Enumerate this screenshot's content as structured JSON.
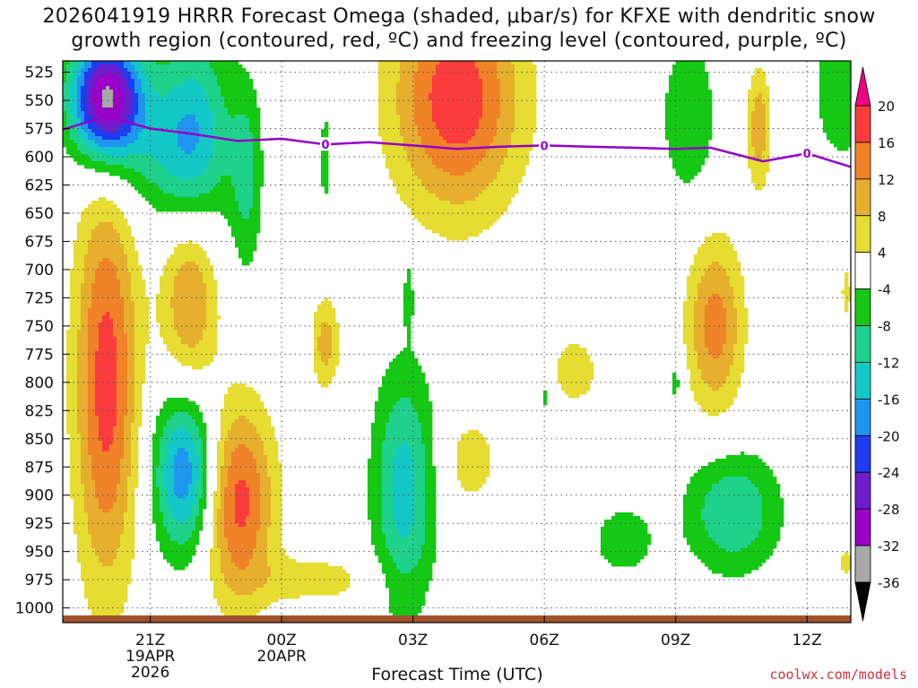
{
  "chart_data": {
    "type": "heatmap",
    "title_line1": "2026041919 HRRR Forecast Omega (shaded, μbar/s) for KFXE with dendritic snow",
    "title_line2": "growth region (contoured, red, ºC) and freezing level (contoured, purple, ºC)",
    "xlabel": "Forecast Time (UTC)",
    "ylabel": "",
    "watermark": "coolwx.com/models",
    "y_ticks": [
      525,
      550,
      575,
      600,
      625,
      650,
      675,
      700,
      725,
      750,
      775,
      800,
      825,
      850,
      875,
      900,
      925,
      950,
      975,
      1000
    ],
    "x_ticks": [
      {
        "hour": 21,
        "label": "21Z",
        "sub": [
          "19APR",
          "2026"
        ]
      },
      {
        "hour": 24,
        "label": "00Z",
        "sub": [
          "20APR"
        ]
      },
      {
        "hour": 27,
        "label": "03Z",
        "sub": []
      },
      {
        "hour": 30,
        "label": "06Z",
        "sub": []
      },
      {
        "hour": 33,
        "label": "09Z",
        "sub": []
      },
      {
        "hour": 36,
        "label": "12Z",
        "sub": []
      }
    ],
    "x_range": [
      19,
      37
    ],
    "y_range": [
      515,
      1013
    ],
    "colorbar": {
      "levels": [
        -36,
        -32,
        -28,
        -24,
        -20,
        -16,
        -12,
        -8,
        -4,
        4,
        8,
        12,
        16,
        20
      ],
      "labels": [
        "20",
        "16",
        "12",
        "8",
        "4",
        "-4",
        "-8",
        "-12",
        "-16",
        "-20",
        "-24",
        "-28",
        "-32",
        "-36"
      ],
      "colors": {
        "below": "#000000",
        "c_36_32": "#a8a8a8",
        "c_32_28": "#9a00c8",
        "c_28_24": "#6e1ccc",
        "c_24_20": "#1e3cf0",
        "c_20_16": "#1e96f0",
        "c_16_12": "#14c8c8",
        "c_12_8": "#1ed28c",
        "c_8_4": "#14c814",
        "c_4_4": "#ffffff",
        "c_4_8": "#e6dc32",
        "c_8_12": "#e6af2d",
        "c_12_16": "#f08228",
        "c_16_20": "#fa3c3c",
        "above": "#f00082"
      }
    },
    "freezing_level": {
      "label": "0",
      "color": "#9400c8",
      "points": [
        [
          19.0,
          576
        ],
        [
          20.0,
          564
        ],
        [
          21.0,
          575
        ],
        [
          22.0,
          580
        ],
        [
          23.0,
          586
        ],
        [
          24.0,
          584
        ],
        [
          25.0,
          589
        ],
        [
          26.0,
          587
        ],
        [
          27.0,
          590
        ],
        [
          28.0,
          593
        ],
        [
          29.0,
          591
        ],
        [
          30.0,
          590
        ],
        [
          31.0,
          591
        ],
        [
          32.0,
          592
        ],
        [
          33.0,
          593
        ],
        [
          33.8,
          592
        ],
        [
          35.0,
          604
        ],
        [
          36.0,
          597
        ],
        [
          37.0,
          609
        ]
      ],
      "label_hours": [
        25.0,
        30.0,
        36.0
      ]
    },
    "omega_features": [
      {
        "name": "upper-left-updraft",
        "hour": 20.0,
        "p": 548,
        "rh": 0.9,
        "rp": 60,
        "peak": -34
      },
      {
        "name": "upper-left-tail",
        "hour": 21.4,
        "p": 595,
        "rh": 1.5,
        "rp": 70,
        "peak": -8
      },
      {
        "name": "upper-mid-updraft",
        "hour": 22.0,
        "p": 570,
        "rh": 0.9,
        "rp": 110,
        "peak": -11
      },
      {
        "name": "upper-strip",
        "hour": 23.2,
        "p": 620,
        "rh": 0.4,
        "rp": 100,
        "peak": -8
      },
      {
        "name": "upper-small-updraft",
        "hour": 25.0,
        "p": 600,
        "rh": 0.15,
        "rp": 50,
        "peak": -7
      },
      {
        "name": "upper-subsidence",
        "hour": 28.0,
        "p": 548,
        "rh": 1.6,
        "rp": 110,
        "peak": 19
      },
      {
        "name": "upper-right-updraft",
        "hour": 33.3,
        "p": 565,
        "rh": 0.7,
        "rp": 80,
        "peak": -8
      },
      {
        "name": "upper-right-strip",
        "hour": 34.9,
        "p": 575,
        "rh": 0.3,
        "rp": 60,
        "peak": 11
      },
      {
        "name": "upper-right-edge",
        "hour": 36.8,
        "p": 540,
        "rh": 0.8,
        "rp": 80,
        "peak": -7
      },
      {
        "name": "low-left-subsidence",
        "hour": 20.0,
        "p": 800,
        "rh": 0.8,
        "rp": 200,
        "peak": 18
      },
      {
        "name": "mid-left-subsidence",
        "hour": 21.9,
        "p": 725,
        "rh": 0.7,
        "rp": 90,
        "peak": 13
      },
      {
        "name": "low-left-updraft",
        "hour": 21.8,
        "p": 880,
        "rh": 0.8,
        "rp": 80,
        "peak": -20
      },
      {
        "name": "low-mid-subsidence",
        "hour": 23.0,
        "p": 905,
        "rh": 0.9,
        "rp": 95,
        "peak": 18
      },
      {
        "name": "low-mid-tail",
        "hour": 24.8,
        "p": 975,
        "rh": 1.6,
        "rp": 25,
        "peak": 6
      },
      {
        "name": "mid-small-subsidence",
        "hour": 25.0,
        "p": 765,
        "rh": 0.35,
        "rp": 45,
        "peak": 10
      },
      {
        "name": "mid-tiny-updraft",
        "hour": 26.9,
        "p": 720,
        "rh": 0.12,
        "rp": 35,
        "peak": -7
      },
      {
        "name": "low-center-updraft",
        "hour": 26.8,
        "p": 895,
        "rh": 0.8,
        "rp": 120,
        "peak": -14
      },
      {
        "name": "low-center-subsidence",
        "hour": 28.3,
        "p": 870,
        "rh": 0.8,
        "rp": 50,
        "peak": 6
      },
      {
        "name": "mid-right-tiny-updraft",
        "hour": 30.0,
        "p": 810,
        "rh": 0.1,
        "rp": 25,
        "peak": -6
      },
      {
        "name": "mid-right-subsidence",
        "hour": 30.7,
        "p": 790,
        "rh": 0.7,
        "rp": 40,
        "peak": 6
      },
      {
        "name": "low-right-updraft",
        "hour": 31.8,
        "p": 940,
        "rh": 0.8,
        "rp": 35,
        "peak": -7
      },
      {
        "name": "right-subsidence",
        "hour": 33.9,
        "p": 750,
        "rh": 0.7,
        "rp": 85,
        "peak": 14
      },
      {
        "name": "right-small-updraft",
        "hour": 33.0,
        "p": 800,
        "rh": 0.2,
        "rp": 25,
        "peak": -6
      },
      {
        "name": "low-far-right-updraft",
        "hour": 34.3,
        "p": 915,
        "rh": 1.2,
        "rp": 60,
        "peak": -12
      },
      {
        "name": "far-right-strip",
        "hour": 36.9,
        "p": 720,
        "rh": 0.2,
        "rp": 40,
        "peak": 5
      },
      {
        "name": "far-right-low-strip",
        "hour": 36.9,
        "p": 960,
        "rh": 0.25,
        "rp": 25,
        "peak": 5
      }
    ]
  }
}
